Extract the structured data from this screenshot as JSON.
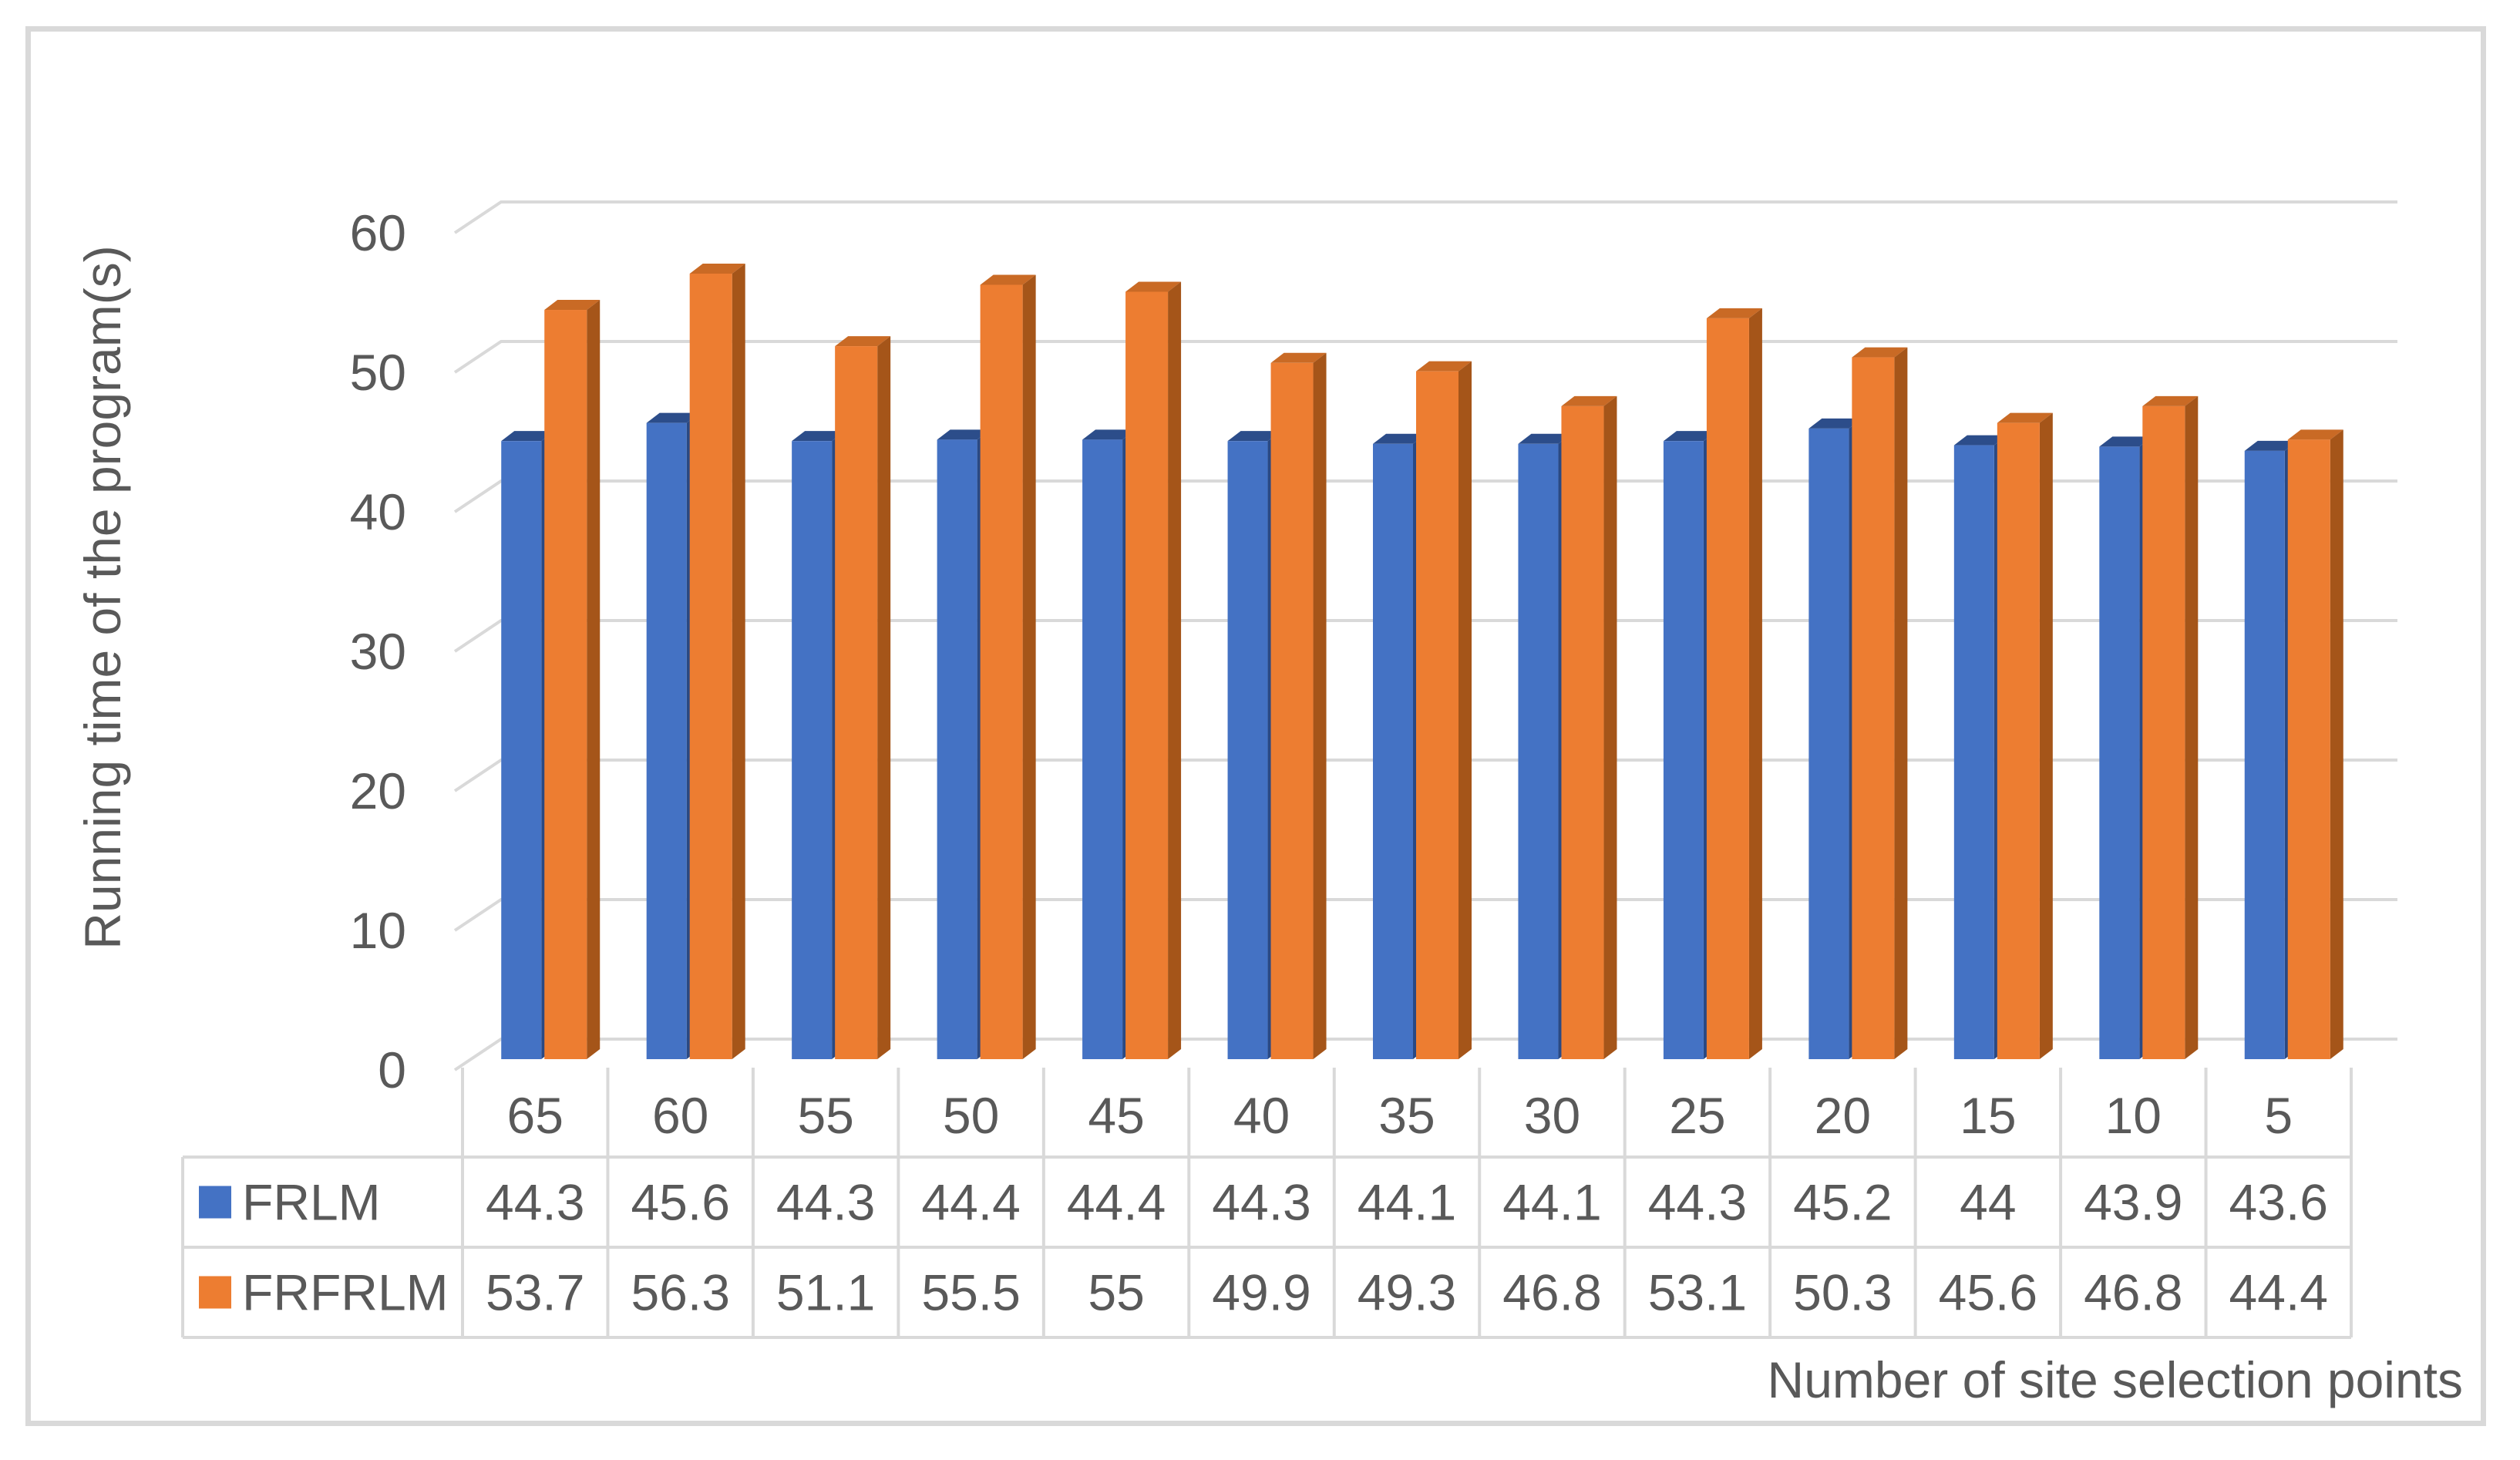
{
  "figure": {
    "background": "#FFFFFF",
    "border_color": "#D9D9D9"
  },
  "chart_data": {
    "type": "bar",
    "style": "3d-clustered-column",
    "title": "",
    "xlabel": "Number of site selection points",
    "ylabel": "Running time of the program(s)",
    "categories": [
      "65",
      "60",
      "55",
      "50",
      "45",
      "40",
      "35",
      "30",
      "25",
      "20",
      "15",
      "10",
      "5"
    ],
    "series": [
      {
        "name": "FRLM",
        "color": "#4472C4",
        "top_color": "#2C4D8A",
        "side_color": "#2A4983",
        "values": [
          44.3,
          45.6,
          44.3,
          44.4,
          44.4,
          44.3,
          44.1,
          44.1,
          44.3,
          45.2,
          44,
          43.9,
          43.6
        ]
      },
      {
        "name": "FRFRLM",
        "color": "#ED7D31",
        "top_color": "#C96A25",
        "side_color": "#A55519",
        "values": [
          53.7,
          56.3,
          51.1,
          55.5,
          55,
          49.9,
          49.3,
          46.8,
          53.1,
          50.3,
          45.6,
          46.8,
          44.4
        ]
      }
    ],
    "ylim": [
      0,
      60
    ],
    "yticks": [
      0,
      10,
      20,
      30,
      40,
      50,
      60
    ],
    "grid": true,
    "gridline_color": "#D9D9D9",
    "text_color": "#595959",
    "legend_position": "table-left",
    "data_table": true
  }
}
